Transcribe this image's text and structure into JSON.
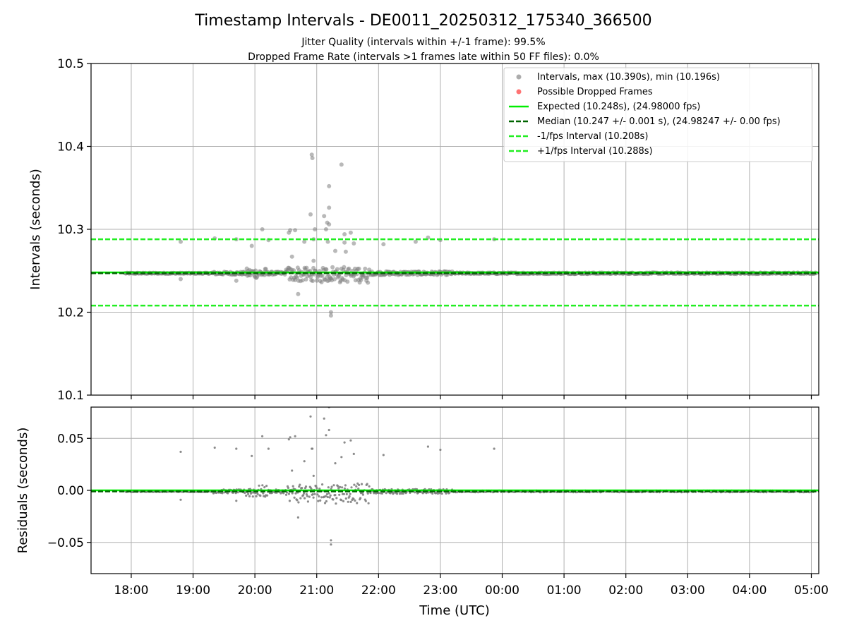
{
  "title": "Timestamp Intervals - DE0011_20250312_175340_366500",
  "subtitles": [
    "Jitter Quality (intervals within +/-1 frame): 99.5%",
    "Dropped Frame Rate (intervals >1 frames late within 50 FF files): 0.0%"
  ],
  "colors": {
    "points": "#808080",
    "dropped": "#ff4444",
    "expected": "#00ee00",
    "median": "#006400",
    "bounds": "#22ee22",
    "grid": "#b0b0b0"
  },
  "chart_data": [
    {
      "type": "scatter",
      "ylabel": "Intervals (seconds)",
      "ylim": [
        10.1,
        10.5
      ],
      "yticks": [
        "10.1",
        "10.2",
        "10.3",
        "10.4",
        "10.5"
      ],
      "ytick_values": [
        10.1,
        10.2,
        10.3,
        10.4,
        10.5
      ],
      "grid": true,
      "legend_position": "top-right",
      "series": [
        {
          "name": "Intervals, max (10.390s), min (10.196s)",
          "kind": "points",
          "color": "#808080"
        },
        {
          "name": "Possible Dropped Frames",
          "kind": "points",
          "color": "#ff4444",
          "values": []
        },
        {
          "name": "Expected (10.248s), (24.98000 fps)",
          "kind": "hline",
          "y": 10.248,
          "color": "#00ee00",
          "style": "solid"
        },
        {
          "name": "Median (10.247 +/- 0.001 s), (24.98247 +/- 0.00 fps)",
          "kind": "hline",
          "y": 10.247,
          "color": "#006400",
          "style": "dashed"
        },
        {
          "name": "-1/fps Interval (10.208s)",
          "kind": "hline",
          "y": 10.208,
          "color": "#22ee22",
          "style": "dashed"
        },
        {
          "name": "+1/fps Interval (10.288s)",
          "kind": "hline",
          "y": 10.288,
          "color": "#22ee22",
          "style": "dashed"
        }
      ],
      "outliers_hours": [
        [
          18.8,
          10.285
        ],
        [
          18.8,
          10.24
        ],
        [
          19.35,
          10.289
        ],
        [
          19.7,
          10.288
        ],
        [
          19.7,
          10.238
        ],
        [
          19.95,
          10.28
        ],
        [
          20.12,
          10.3
        ],
        [
          20.22,
          10.287
        ],
        [
          20.55,
          10.296
        ],
        [
          20.57,
          10.299
        ],
        [
          20.6,
          10.267
        ],
        [
          20.65,
          10.299
        ],
        [
          20.7,
          10.222
        ],
        [
          20.8,
          10.285
        ],
        [
          20.9,
          10.318
        ],
        [
          20.92,
          10.39
        ],
        [
          20.93,
          10.386
        ],
        [
          20.95,
          10.262
        ],
        [
          20.95,
          10.288
        ],
        [
          20.97,
          10.3
        ],
        [
          21.12,
          10.316
        ],
        [
          21.15,
          10.3
        ],
        [
          21.17,
          10.308
        ],
        [
          21.2,
          10.326
        ],
        [
          21.2,
          10.306
        ],
        [
          21.2,
          10.352
        ],
        [
          21.18,
          10.285
        ],
        [
          21.23,
          10.2
        ],
        [
          21.23,
          10.196
        ],
        [
          21.3,
          10.274
        ],
        [
          21.4,
          10.378
        ],
        [
          21.45,
          10.284
        ],
        [
          21.45,
          10.294
        ],
        [
          21.47,
          10.273
        ],
        [
          21.55,
          10.296
        ],
        [
          21.6,
          10.283
        ],
        [
          22.08,
          10.282
        ],
        [
          22.6,
          10.285
        ],
        [
          22.8,
          10.29
        ],
        [
          23.0,
          10.287
        ],
        [
          23.87,
          10.288
        ]
      ]
    },
    {
      "type": "scatter",
      "xlabel": "Time (UTC)",
      "ylabel": "Residuals (seconds)",
      "ylim": [
        -0.08,
        0.08
      ],
      "yticks": [
        "−0.05",
        "0.00",
        "0.05"
      ],
      "ytick_values": [
        -0.05,
        0.0,
        0.05
      ],
      "grid": true,
      "series": [
        {
          "name": "residuals",
          "kind": "points",
          "color": "#808080"
        },
        {
          "name": "expected",
          "kind": "hline",
          "y": 0.0,
          "color": "#00ee00",
          "style": "solid"
        },
        {
          "name": "median",
          "kind": "hline",
          "y": -0.001,
          "color": "#006400",
          "style": "dashed"
        }
      ],
      "outliers_hours": [
        [
          18.8,
          0.037
        ],
        [
          18.8,
          -0.009
        ],
        [
          19.35,
          0.041
        ],
        [
          19.7,
          0.04
        ],
        [
          19.7,
          -0.01
        ],
        [
          19.95,
          0.033
        ],
        [
          20.12,
          0.052
        ],
        [
          20.22,
          0.04
        ],
        [
          20.55,
          0.049
        ],
        [
          20.57,
          0.051
        ],
        [
          20.6,
          0.019
        ],
        [
          20.65,
          0.052
        ],
        [
          20.7,
          -0.026
        ],
        [
          20.8,
          0.028
        ],
        [
          20.9,
          0.071
        ],
        [
          20.92,
          0.04
        ],
        [
          20.93,
          0.04
        ],
        [
          20.95,
          0.014
        ],
        [
          21.12,
          0.069
        ],
        [
          21.15,
          0.053
        ],
        [
          21.2,
          0.08
        ],
        [
          21.2,
          0.058
        ],
        [
          21.23,
          -0.052
        ],
        [
          21.23,
          -0.048
        ],
        [
          21.3,
          0.026
        ],
        [
          21.4,
          0.032
        ],
        [
          21.45,
          0.046
        ],
        [
          21.55,
          0.048
        ],
        [
          21.6,
          0.035
        ],
        [
          22.08,
          0.034
        ],
        [
          22.8,
          0.042
        ],
        [
          23.0,
          0.039
        ],
        [
          23.87,
          0.04
        ]
      ]
    }
  ],
  "x_axis": {
    "label": "Time (UTC)",
    "ticks": [
      "18:00",
      "19:00",
      "20:00",
      "21:00",
      "22:00",
      "23:00",
      "00:00",
      "01:00",
      "02:00",
      "03:00",
      "04:00",
      "05:00"
    ],
    "tick_hours": [
      18,
      19,
      20,
      21,
      22,
      23,
      24,
      25,
      26,
      27,
      28,
      29
    ],
    "range_hours": [
      17.35,
      29.12
    ],
    "data_start_hours": 17.9,
    "data_end_hours": 29.08
  }
}
